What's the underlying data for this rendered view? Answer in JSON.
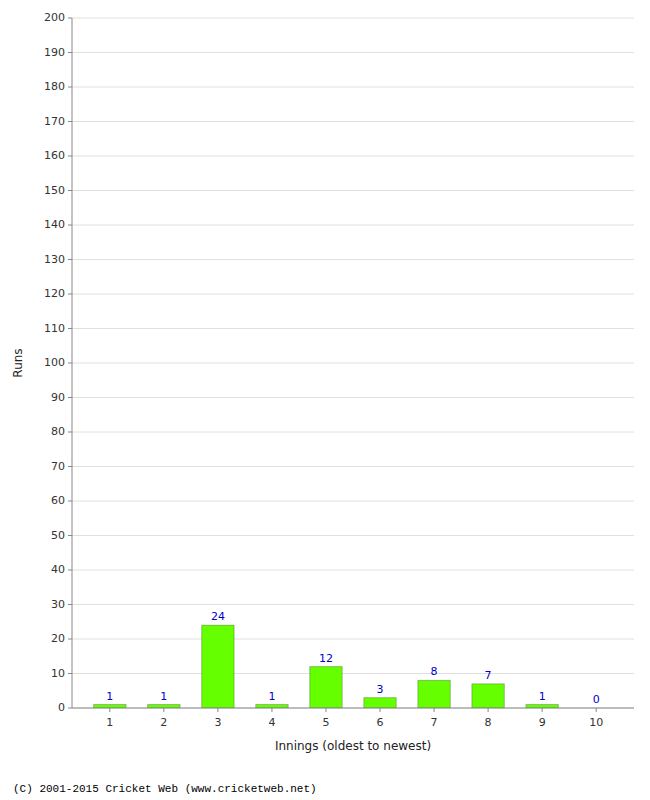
{
  "chart_data": {
    "type": "bar",
    "categories": [
      "1",
      "2",
      "3",
      "4",
      "5",
      "6",
      "7",
      "8",
      "9",
      "10"
    ],
    "values": [
      1,
      1,
      24,
      1,
      12,
      3,
      8,
      7,
      1,
      0
    ],
    "color": "#66ff00",
    "xlabel": "Innings (oldest to newest)",
    "ylabel": "Runs",
    "ylim": [
      0,
      200
    ],
    "yticks": [
      0,
      10,
      20,
      30,
      40,
      50,
      60,
      70,
      80,
      90,
      100,
      110,
      120,
      130,
      140,
      150,
      160,
      170,
      180,
      190,
      200
    ],
    "grid": true,
    "data_labels": true,
    "annotations": [
      "(C) 2001-2015 Cricket Web (www.cricketweb.net)"
    ]
  }
}
